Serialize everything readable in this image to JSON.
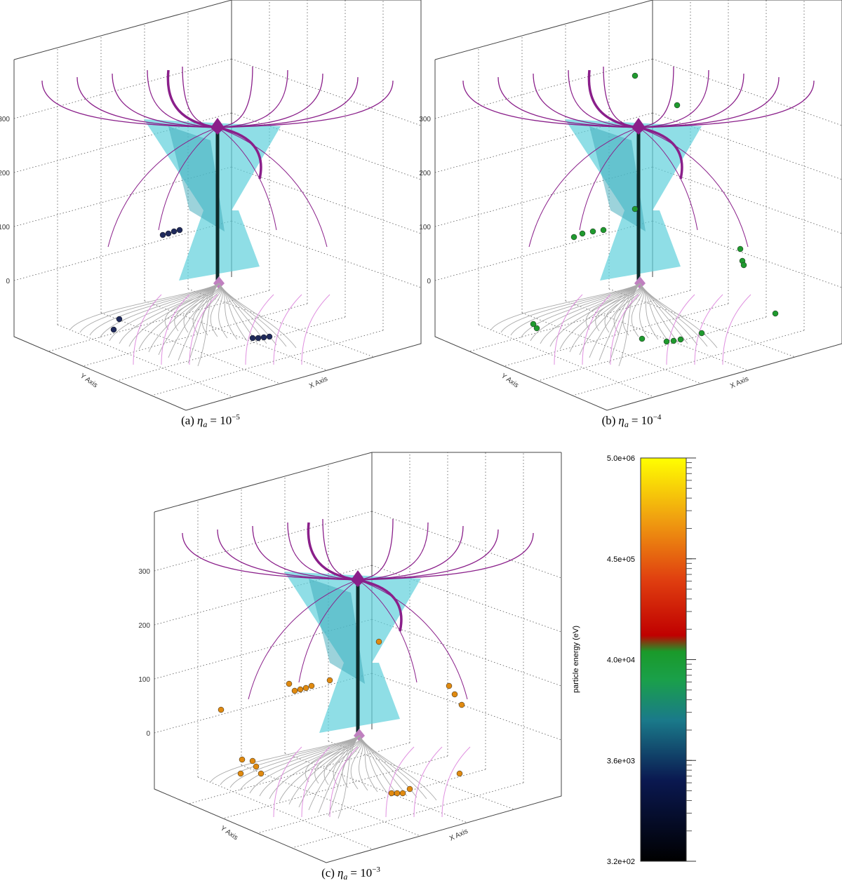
{
  "panels": [
    {
      "caption": {
        "label": "(a)",
        "symbol": "η",
        "subscript": "a",
        "relation": "= 10",
        "exponent": "−5"
      },
      "z_ticks": [
        "0",
        "100",
        "200",
        "300"
      ],
      "x_axis": "X Axis",
      "y_axis": "Y Axis",
      "particle_color": "#1f2a5c"
    },
    {
      "caption": {
        "label": "(b)",
        "symbol": "η",
        "subscript": "a",
        "relation": "= 10",
        "exponent": "−4"
      },
      "z_ticks": [
        "0",
        "100",
        "200",
        "300"
      ],
      "x_axis": "X Axis",
      "y_axis": "Y Axis",
      "particle_color": "#1f9a2e"
    },
    {
      "caption": {
        "label": "(c)",
        "symbol": "η",
        "subscript": "a",
        "relation": "= 10",
        "exponent": "−3"
      },
      "z_ticks": [
        "0",
        "100",
        "200",
        "300"
      ],
      "x_axis": "X Axis",
      "y_axis": "Y Axis",
      "particle_color": "#e08a10"
    }
  ],
  "colorbar": {
    "label": "particle energy (eV)",
    "ticks": [
      "3.2e+02",
      "3.6e+03",
      "4.0e+04",
      "4.5e+05",
      "5.0e+06"
    ]
  }
}
